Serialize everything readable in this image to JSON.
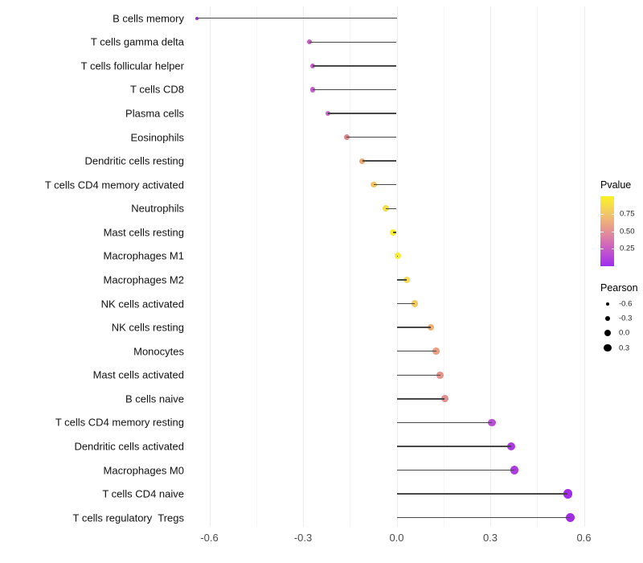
{
  "chart_data": {
    "type": "lollipop",
    "orientation": "horizontal",
    "title": "",
    "xlabel": "",
    "ylabel": "",
    "grid": "vertical-only",
    "x_axis": {
      "tick_labels": [
        "-0.6",
        "-0.3",
        "0.0",
        "0.3",
        "0.6"
      ],
      "tick_values": [
        -0.6,
        -0.3,
        0.0,
        0.3,
        0.6
      ],
      "minor_step": 0.15,
      "range": [
        -0.663,
        0.689
      ]
    },
    "rows": [
      {
        "label": "B cells memory",
        "pearson": -0.64,
        "color": "#9b2fe6"
      },
      {
        "label": "T cells gamma delta",
        "pearson": -0.28,
        "color": "#c45fc8"
      },
      {
        "label": "T cells follicular helper",
        "pearson": -0.27,
        "color": "#c35dc9"
      },
      {
        "label": "T cells CD8",
        "pearson": -0.27,
        "color": "#c35dc9"
      },
      {
        "label": "Plasma cells",
        "pearson": -0.22,
        "color": "#c966c3"
      },
      {
        "label": "Eosinophils",
        "pearson": -0.16,
        "color": "#dc8486"
      },
      {
        "label": "Dendritic cells resting",
        "pearson": -0.11,
        "color": "#eca76c"
      },
      {
        "label": "T cells CD4 memory activated",
        "pearson": -0.073,
        "color": "#f0c45f"
      },
      {
        "label": "Neutrophils",
        "pearson": -0.035,
        "color": "#f4de4c"
      },
      {
        "label": "Mast cells resting",
        "pearson": -0.012,
        "color": "#faef2f"
      },
      {
        "label": "Macrophages M1",
        "pearson": 0.004,
        "color": "#faed37"
      },
      {
        "label": "Macrophages M2",
        "pearson": 0.033,
        "color": "#f7db57"
      },
      {
        "label": "NK cells activated",
        "pearson": 0.058,
        "color": "#f3c964"
      },
      {
        "label": "NK cells resting",
        "pearson": 0.109,
        "color": "#efae73"
      },
      {
        "label": "Monocytes",
        "pearson": 0.127,
        "color": "#e89e80"
      },
      {
        "label": "Mast cells activated",
        "pearson": 0.139,
        "color": "#e4938a"
      },
      {
        "label": "B cells naive",
        "pearson": 0.154,
        "color": "#e18e90"
      },
      {
        "label": "T cells CD4 memory resting",
        "pearson": 0.305,
        "color": "#b94fd5"
      },
      {
        "label": "Dendritic cells activated",
        "pearson": 0.366,
        "color": "#ac3bdf"
      },
      {
        "label": "Macrophages M0",
        "pearson": 0.378,
        "color": "#ac3bdf"
      },
      {
        "label": "T cells CD4 naive",
        "pearson": 0.548,
        "color": "#a22ce6"
      },
      {
        "label": "T cells regulatory  Tregs",
        "pearson": 0.556,
        "color": "#a22ce6"
      }
    ],
    "legend_pvalue": {
      "title": "Pvalue",
      "tick_labels": [
        "0.75",
        "0.50",
        "0.25"
      ],
      "tick_values": [
        0.75,
        0.5,
        0.25
      ],
      "bar_range": [
        0,
        1
      ],
      "gradient_top_to_bottom": [
        "#faf222",
        "#f6db4d",
        "#f0be71",
        "#e9a087",
        "#de82a2",
        "#cf63be",
        "#b947d8",
        "#9d2dee"
      ]
    },
    "legend_pearson": {
      "title": "Pearson",
      "entries": [
        {
          "label": "-0.6",
          "value": -0.6
        },
        {
          "label": "-0.3",
          "value": -0.3
        },
        {
          "label": "0.0",
          "value": 0.0
        },
        {
          "label": "0.3",
          "value": 0.3
        }
      ],
      "dot_color": "#000000"
    }
  }
}
